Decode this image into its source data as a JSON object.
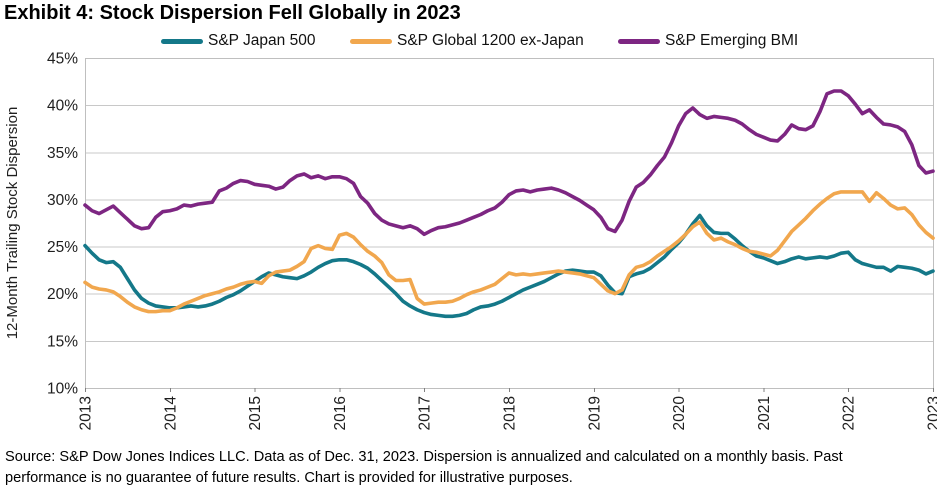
{
  "title": "Exhibit 4: Stock Dispersion Fell Globally in 2023",
  "legend": [
    {
      "label": "S&P Japan 500",
      "color": "#147889"
    },
    {
      "label": "S&P Global 1200 ex-Japan",
      "color": "#F1A74E"
    },
    {
      "label": "S&P Emerging BMI",
      "color": "#7D2682"
    }
  ],
  "source_lines": [
    "Source: S&P Dow Jones Indices LLC. Data as of Dec. 31, 2023. Dispersion is annualized and calculated on a monthly basis. Past",
    "performance is no guarantee of future results. Chart is provided for illustrative purposes."
  ],
  "chart_data": {
    "type": "line",
    "title": "Exhibit 4: Stock Dispersion Fell Globally in 2023",
    "xlabel": "",
    "ylabel": "12-Month Trailing Stock Dispersion",
    "ylim": [
      10,
      45
    ],
    "yticklabels": [
      "10%",
      "15%",
      "20%",
      "25%",
      "30%",
      "35%",
      "40%",
      "45%"
    ],
    "xticklabels": [
      "2013",
      "2014",
      "2015",
      "2016",
      "2017",
      "2018",
      "2019",
      "2020",
      "2021",
      "2022",
      "2023"
    ],
    "grid": "horizontal",
    "legend_position": "top",
    "points_per_year": 12,
    "x_range": [
      2013,
      2023
    ],
    "series": [
      {
        "name": "S&P Japan 500",
        "color": "#147889",
        "values": [
          25.1,
          24.3,
          23.6,
          23.3,
          23.4,
          22.8,
          21.6,
          20.4,
          19.5,
          19.0,
          18.7,
          18.6,
          18.5,
          18.5,
          18.6,
          18.7,
          18.6,
          18.7,
          18.9,
          19.2,
          19.6,
          19.9,
          20.3,
          20.8,
          21.3,
          21.8,
          22.2,
          22.0,
          21.8,
          21.7,
          21.6,
          21.9,
          22.3,
          22.8,
          23.2,
          23.5,
          23.6,
          23.6,
          23.4,
          23.1,
          22.7,
          22.1,
          21.4,
          20.7,
          20.0,
          19.2,
          18.7,
          18.3,
          18.0,
          17.8,
          17.7,
          17.6,
          17.6,
          17.7,
          17.9,
          18.3,
          18.6,
          18.7,
          18.9,
          19.2,
          19.6,
          20.0,
          20.4,
          20.7,
          21.0,
          21.3,
          21.7,
          22.1,
          22.4,
          22.5,
          22.4,
          22.3,
          22.3,
          21.9,
          20.9,
          20.1,
          20.0,
          21.8,
          22.1,
          22.3,
          22.7,
          23.3,
          23.9,
          24.7,
          25.4,
          26.3,
          27.4,
          28.3,
          27.2,
          26.5,
          26.4,
          26.4,
          25.8,
          25.1,
          24.5,
          24.0,
          23.8,
          23.5,
          23.2,
          23.4,
          23.7,
          23.9,
          23.7,
          23.8,
          23.9,
          23.8,
          24.0,
          24.3,
          24.4,
          23.6,
          23.2,
          23.0,
          22.8,
          22.8,
          22.4,
          22.9,
          22.8,
          22.7,
          22.5,
          22.1,
          22.4
        ]
      },
      {
        "name": "S&P Global 1200 ex-Japan",
        "color": "#F1A74E",
        "values": [
          21.2,
          20.7,
          20.5,
          20.4,
          20.2,
          19.7,
          19.1,
          18.6,
          18.3,
          18.1,
          18.1,
          18.2,
          18.2,
          18.5,
          18.9,
          19.2,
          19.5,
          19.8,
          20.0,
          20.2,
          20.5,
          20.7,
          21.0,
          21.2,
          21.3,
          21.1,
          21.9,
          22.3,
          22.4,
          22.5,
          22.9,
          23.4,
          24.8,
          25.1,
          24.8,
          24.7,
          26.2,
          26.4,
          26.0,
          25.2,
          24.5,
          24.0,
          23.3,
          22.0,
          21.4,
          21.4,
          21.5,
          19.5,
          18.9,
          19.0,
          19.1,
          19.1,
          19.2,
          19.5,
          19.9,
          20.2,
          20.4,
          20.7,
          21.0,
          21.6,
          22.2,
          22.0,
          22.1,
          22.0,
          22.1,
          22.2,
          22.3,
          22.4,
          22.3,
          22.2,
          22.1,
          21.9,
          21.7,
          21.0,
          20.3,
          20.0,
          20.4,
          22.0,
          22.8,
          23.0,
          23.4,
          24.0,
          24.5,
          25.0,
          25.6,
          26.3,
          27.1,
          27.6,
          26.4,
          25.7,
          25.9,
          25.5,
          25.2,
          24.8,
          24.5,
          24.4,
          24.2,
          24.0,
          24.6,
          25.6,
          26.6,
          27.3,
          28.0,
          28.8,
          29.5,
          30.1,
          30.6,
          30.8,
          30.8,
          30.8,
          30.8,
          29.8,
          30.7,
          30.1,
          29.4,
          29.0,
          29.1,
          28.4,
          27.3,
          26.5,
          25.9
        ]
      },
      {
        "name": "S&P Emerging BMI",
        "color": "#7D2682",
        "values": [
          29.4,
          28.8,
          28.5,
          28.9,
          29.3,
          28.6,
          27.9,
          27.2,
          26.9,
          27.0,
          28.1,
          28.7,
          28.8,
          29.0,
          29.4,
          29.3,
          29.5,
          29.6,
          29.7,
          30.9,
          31.2,
          31.7,
          32.0,
          31.9,
          31.6,
          31.5,
          31.4,
          31.1,
          31.3,
          32.0,
          32.5,
          32.7,
          32.3,
          32.5,
          32.2,
          32.4,
          32.4,
          32.2,
          31.7,
          30.3,
          29.6,
          28.5,
          27.8,
          27.4,
          27.2,
          27.0,
          27.2,
          26.9,
          26.3,
          26.7,
          27.0,
          27.1,
          27.3,
          27.5,
          27.8,
          28.1,
          28.4,
          28.8,
          29.1,
          29.7,
          30.5,
          30.9,
          31.0,
          30.8,
          31.0,
          31.1,
          31.2,
          31.0,
          30.7,
          30.3,
          29.9,
          29.4,
          28.9,
          28.1,
          26.9,
          26.6,
          27.8,
          29.8,
          31.3,
          31.8,
          32.6,
          33.6,
          34.5,
          36.0,
          37.8,
          39.1,
          39.7,
          39.0,
          38.6,
          38.8,
          38.7,
          38.6,
          38.4,
          38.0,
          37.4,
          36.9,
          36.6,
          36.3,
          36.2,
          36.9,
          37.9,
          37.5,
          37.4,
          37.8,
          39.3,
          41.2,
          41.5,
          41.5,
          41.0,
          40.1,
          39.1,
          39.5,
          38.7,
          38.0,
          37.9,
          37.7,
          37.2,
          35.8,
          33.6,
          32.8,
          33.0
        ]
      }
    ],
    "colors": {
      "grid": "#C8C8C8",
      "frame": "#BFBFBF",
      "tick": "#808080",
      "axis_text": "#1f1f1f"
    }
  }
}
